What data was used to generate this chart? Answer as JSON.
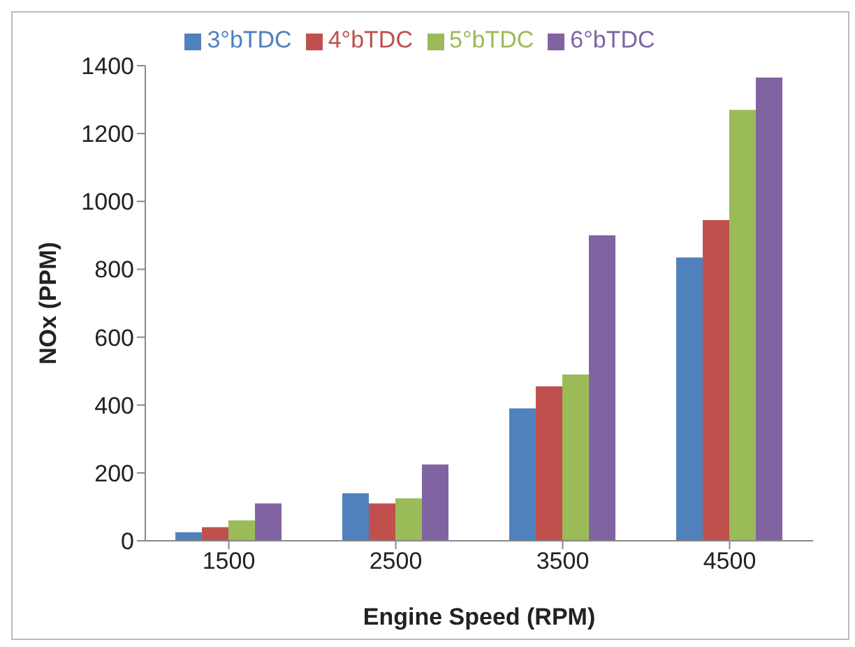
{
  "chart_data": {
    "type": "bar",
    "xlabel": "Engine Speed (RPM)",
    "ylabel": "NOx (PPM)",
    "categories": [
      "1500",
      "2500",
      "3500",
      "4500"
    ],
    "series": [
      {
        "name": "3°bTDC",
        "color": "#4f81bd",
        "values": [
          25,
          140,
          390,
          835
        ]
      },
      {
        "name": "4°bTDC",
        "color": "#c0504d",
        "values": [
          40,
          110,
          455,
          945
        ]
      },
      {
        "name": "5°bTDC",
        "color": "#9bbb59",
        "values": [
          60,
          125,
          490,
          1270
        ]
      },
      {
        "name": "6°bTDC",
        "color": "#8064a2",
        "values": [
          110,
          225,
          900,
          1365
        ]
      }
    ],
    "ylim": [
      0,
      1400
    ],
    "yticks": [
      0,
      200,
      400,
      600,
      800,
      1000,
      1200,
      1400
    ],
    "grid": false,
    "legend": "top"
  }
}
